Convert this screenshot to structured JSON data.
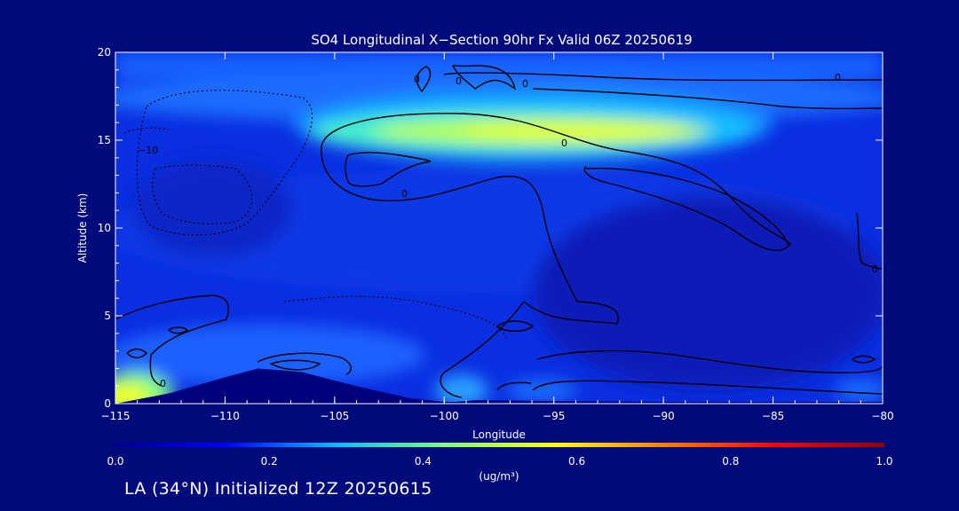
{
  "chart_data": {
    "type": "heatmap",
    "title": "SO4 Longitudinal X−Section 90hr  Fx Valid 06Z 20250619",
    "xlabel": "Longitude",
    "ylabel": "Altitude (km)",
    "xlim": [
      -115,
      -80
    ],
    "ylim": [
      0,
      20
    ],
    "x_ticks": [
      -115,
      -110,
      -105,
      -100,
      -95,
      -90,
      -85,
      -80
    ],
    "x_tick_labels": [
      "−115",
      "−110",
      "−105",
      "−100",
      "−95",
      "−90",
      "−85",
      "−80"
    ],
    "y_ticks": [
      0,
      5,
      10,
      15,
      20
    ],
    "y_tick_labels": [
      "0",
      "5",
      "10",
      "15",
      "20"
    ],
    "colorbar": {
      "min": 0.0,
      "max": 1.0,
      "ticks": [
        0.0,
        0.2,
        0.4,
        0.6,
        0.8,
        1.0
      ],
      "tick_labels": [
        "0.0",
        "0.2",
        "0.4",
        "0.6",
        "0.8",
        "1.0"
      ],
      "unit_label": "(ug/m³)",
      "colors": [
        "#00008f",
        "#0000ff",
        "#00bfff",
        "#7fff7f",
        "#ffff00",
        "#ff7f00",
        "#ff0000",
        "#8f0000"
      ]
    },
    "concentration_features": [
      {
        "name": "upper-layer maximum",
        "lon": [
          -104,
          -87
        ],
        "alt": [
          13.5,
          17
        ],
        "peak": 0.55
      },
      {
        "name": "surface maximum",
        "lon": [
          -115,
          -113.5
        ],
        "alt": [
          0,
          1
        ],
        "peak": 0.6
      },
      {
        "name": "background",
        "lon": [
          -115,
          -80
        ],
        "alt": [
          0,
          20
        ],
        "peak": 0.1
      }
    ],
    "contour_labels": [
      "0",
      "0",
      "0",
      "0",
      "0",
      "−10",
      "0",
      "0",
      "0"
    ],
    "terrain_profile": {
      "lon": [
        -115,
        -112.5,
        -110,
        -108.5,
        -106.5,
        -104,
        -101.5,
        -100,
        -99.5,
        -98.5,
        -95,
        -90,
        -85,
        -80
      ],
      "alt": [
        0,
        0.6,
        1.5,
        2.0,
        1.8,
        1.0,
        0.3,
        0.1,
        0.1,
        0.2,
        0.15,
        0.1,
        0.1,
        0.1
      ]
    }
  },
  "footer": {
    "text": "LA (34°N) Initialized 12Z 20250615"
  }
}
